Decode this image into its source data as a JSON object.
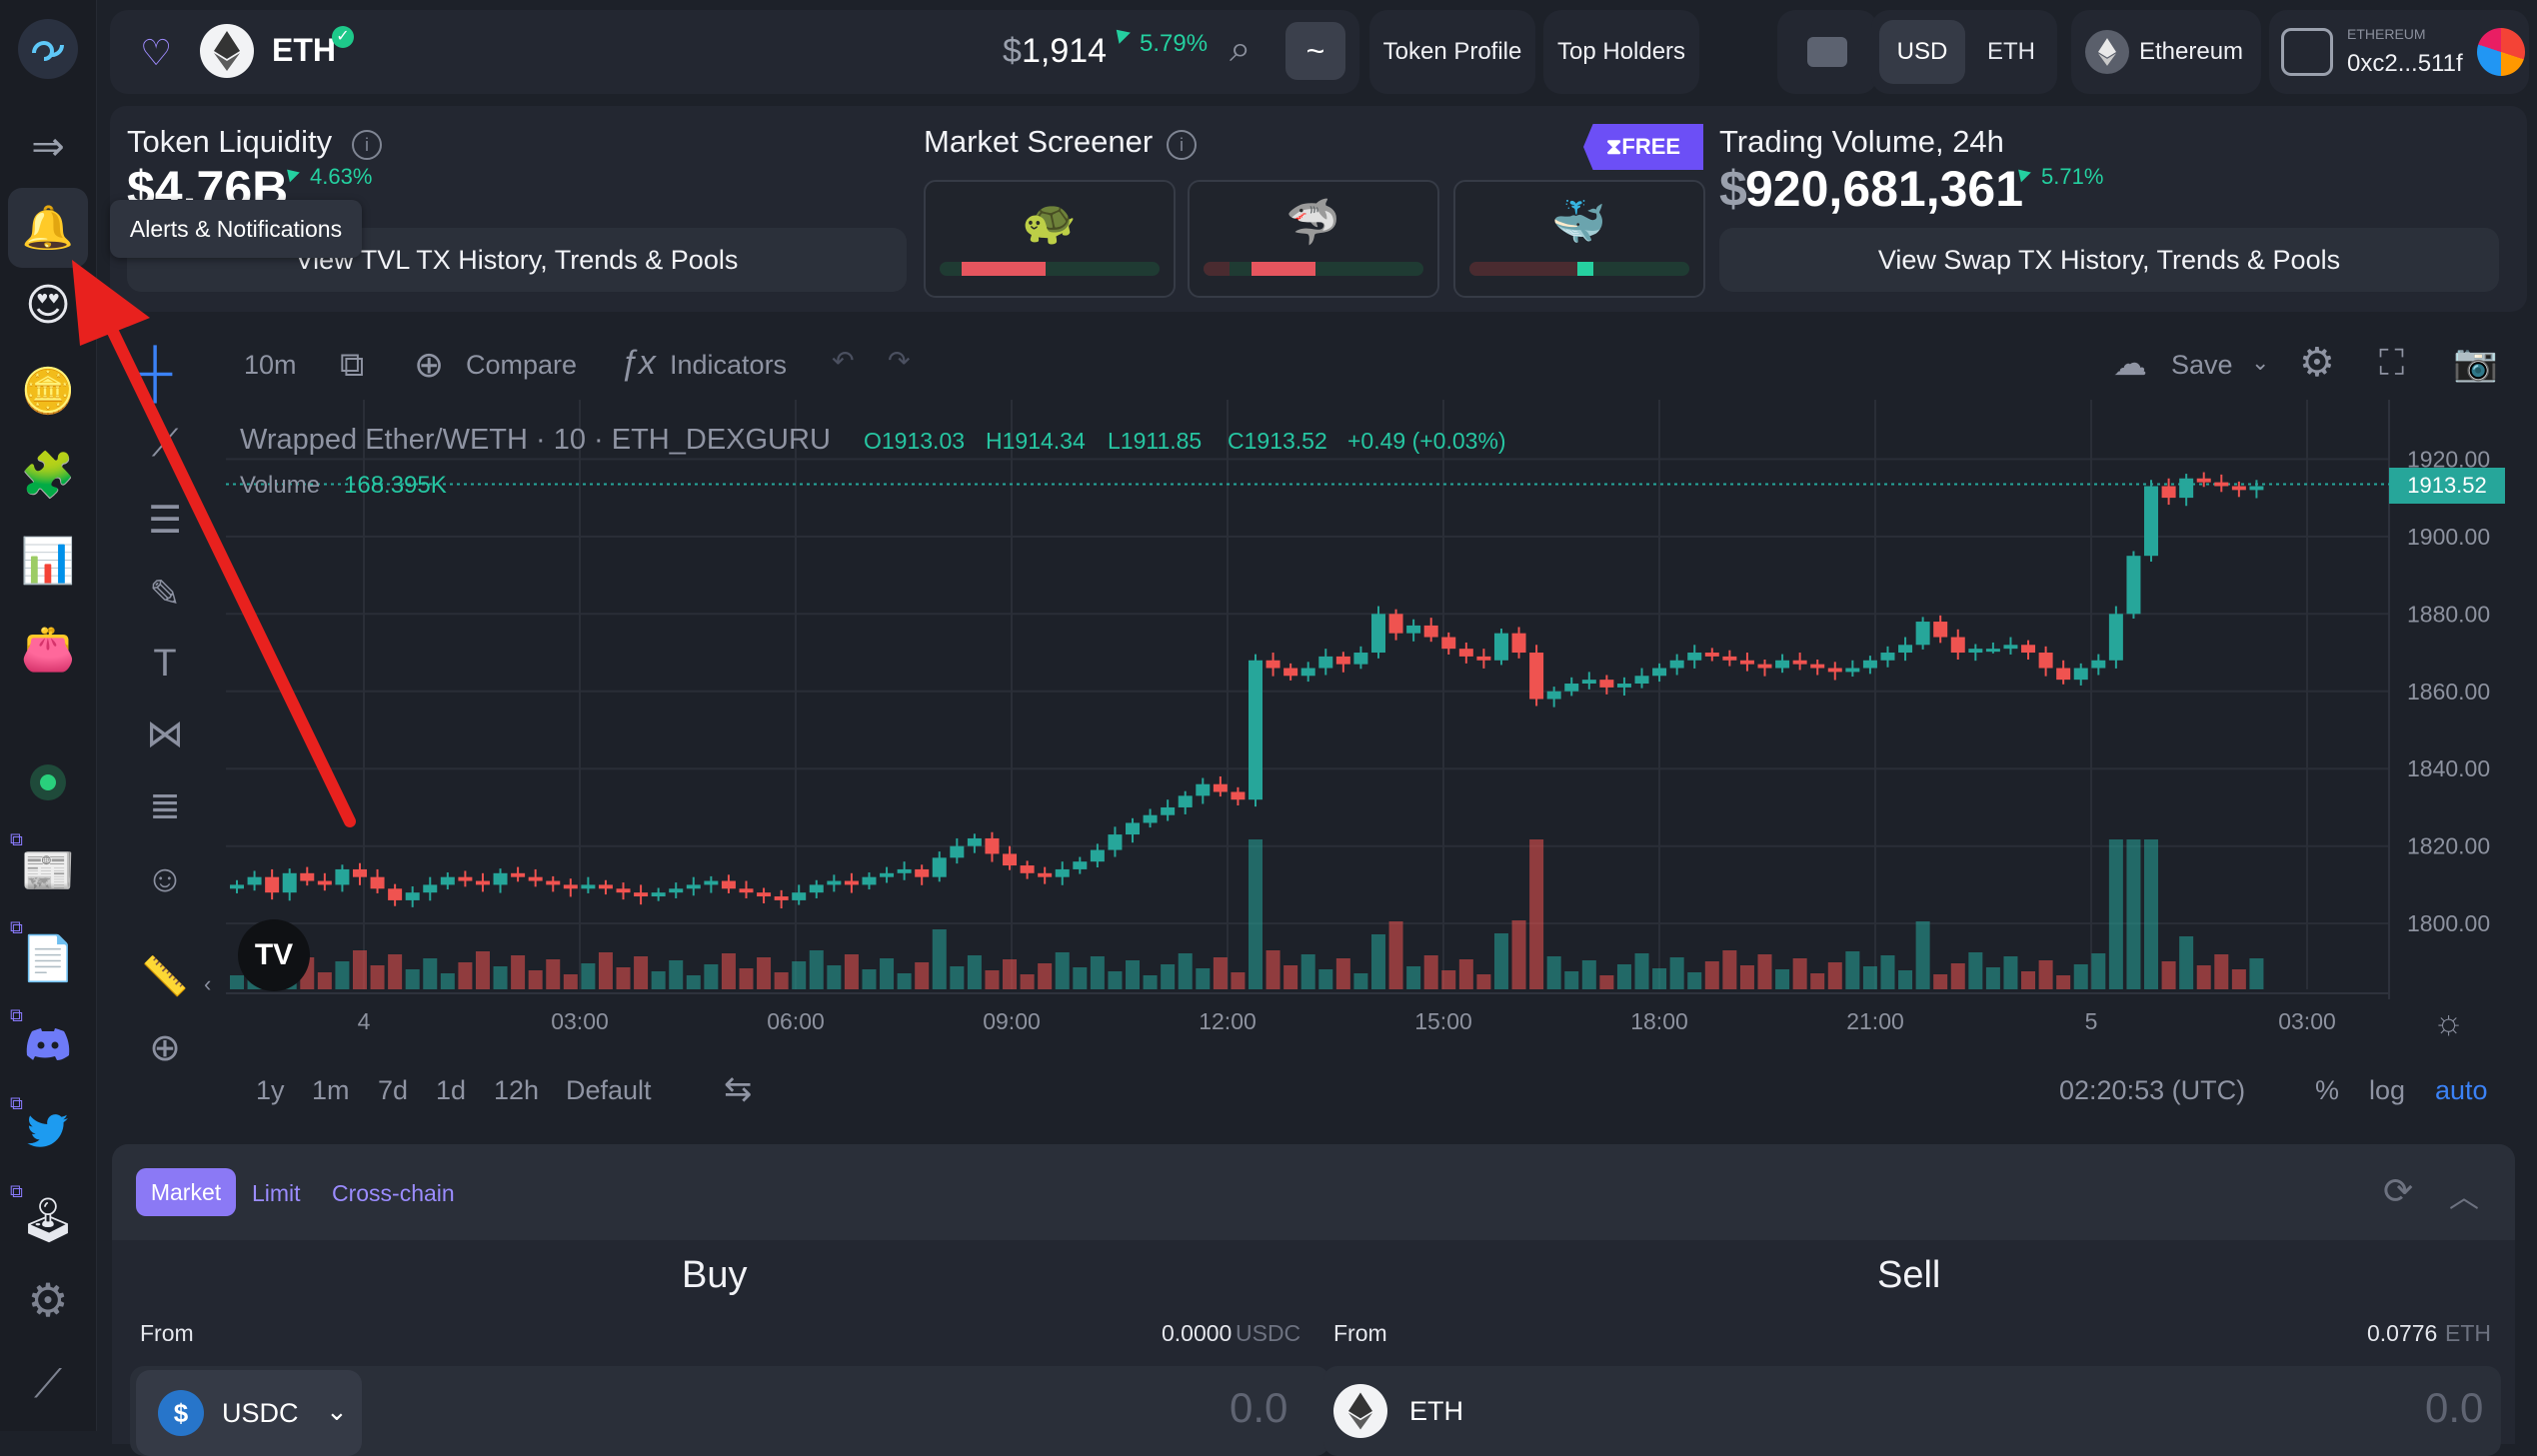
{
  "header": {
    "token_symbol": "ETH",
    "price_prefix": "$",
    "price": "1,914",
    "price_change": "5.79%",
    "tilde_button": "~",
    "token_profile_btn": "Token Profile",
    "top_holders_btn": "Top Holders",
    "currency_usd": "USD",
    "currency_eth": "ETH",
    "network": "Ethereum",
    "wallet_network": "ETHEREUM",
    "wallet_address": "0xc2...511f"
  },
  "sidebar": {
    "tooltip": "Alerts & Notifications"
  },
  "liquidity": {
    "title": "Token Liquidity",
    "value": "$4.76B",
    "change": "4.63%",
    "button": "View TVL TX History, Trends & Pools"
  },
  "screener": {
    "title": "Market Screener",
    "free_badge": "FREE",
    "items": [
      {
        "icon": "turtle-icon",
        "glyph": "🐢",
        "sell_fraction": 0.38
      },
      {
        "icon": "shark-icon",
        "glyph": "🦈",
        "sell_fraction": 0.3
      },
      {
        "icon": "whale-icon",
        "glyph": "🐳",
        "sell_fraction": 0.5
      }
    ]
  },
  "volume24": {
    "title": "Trading Volume, 24h",
    "prefix": "$",
    "value": "920,681,361",
    "change": "5.71%",
    "button": "View Swap TX History, Trends & Pools"
  },
  "chart_toolbar": {
    "interval": "10m",
    "compare": "Compare",
    "indicators": "Indicators",
    "save": "Save"
  },
  "chart_legend": {
    "symbol": "Wrapped Ether/WETH · 10 · ETH_DEXGURU",
    "o": "O1913.03",
    "h": "H1914.34",
    "l": "L1911.85",
    "c": "C1913.52",
    "change": "+0.49 (+0.03%)",
    "volume_label": "Volume",
    "volume_value": "168.395K",
    "last_price": "1913.52"
  },
  "chart_data": {
    "type": "candlestick",
    "x_ticks": [
      "4",
      "03:00",
      "06:00",
      "09:00",
      "12:00",
      "15:00",
      "18:00",
      "21:00",
      "5",
      "03:00"
    ],
    "y_ticks": [
      "1920.00",
      "1900.00",
      "1880.00",
      "1860.00",
      "1840.00",
      "1820.00",
      "1800.00"
    ],
    "ylim": [
      1783,
      1925
    ],
    "close": [
      1810,
      1812,
      1808,
      1813,
      1811,
      1810,
      1814,
      1812,
      1809,
      1806,
      1808,
      1810,
      1812,
      1811,
      1810,
      1813,
      1812,
      1811,
      1810,
      1809,
      1810,
      1809,
      1808,
      1807,
      1808,
      1809,
      1810,
      1811,
      1809,
      1808,
      1807,
      1806,
      1808,
      1810,
      1811,
      1810,
      1812,
      1813,
      1814,
      1812,
      1817,
      1820,
      1822,
      1818,
      1815,
      1813,
      1812,
      1814,
      1816,
      1819,
      1823,
      1826,
      1828,
      1830,
      1833,
      1836,
      1834,
      1832,
      1868,
      1866,
      1864,
      1866,
      1869,
      1867,
      1870,
      1880,
      1875,
      1877,
      1874,
      1871,
      1869,
      1868,
      1875,
      1870,
      1858,
      1860,
      1862,
      1863,
      1861,
      1862,
      1864,
      1866,
      1868,
      1870,
      1869,
      1868,
      1867,
      1866,
      1868,
      1867,
      1866,
      1865,
      1866,
      1868,
      1870,
      1872,
      1878,
      1874,
      1870,
      1871,
      1871,
      1872,
      1870,
      1866,
      1863,
      1866,
      1868,
      1880,
      1895,
      1913,
      1910,
      1915,
      1914,
      1913,
      1912,
      1913
    ],
    "volume_ticks": "bars beneath price",
    "period_buttons": [
      "1y",
      "1m",
      "7d",
      "1d",
      "12h",
      "Default"
    ],
    "time_utc": "02:20:53 (UTC)",
    "scale_buttons": [
      "%",
      "log",
      "auto"
    ]
  },
  "chart_footer": {
    "b1": "1y",
    "b2": "1m",
    "b3": "7d",
    "b4": "1d",
    "b5": "12h",
    "b6": "Default",
    "time": "02:20:53 (UTC)",
    "pct": "%",
    "log": "log",
    "auto": "auto"
  },
  "trade": {
    "tab_market": "Market",
    "tab_limit": "Limit",
    "tab_crosschain": "Cross-chain",
    "buy_title": "Buy",
    "sell_title": "Sell",
    "buy_from_label": "From",
    "buy_balance": "0.0000",
    "buy_balance_unit": "USDC",
    "buy_token": "USDC",
    "buy_amount": "0.0",
    "sell_from_label": "From",
    "sell_balance": "0.0776",
    "sell_balance_unit": "ETH",
    "sell_token": "ETH",
    "sell_amount": "0.0"
  },
  "colors": {
    "up": "#26a69a",
    "down": "#ef5350",
    "accent": "#7b61ff",
    "arrow": "#e8211e"
  }
}
